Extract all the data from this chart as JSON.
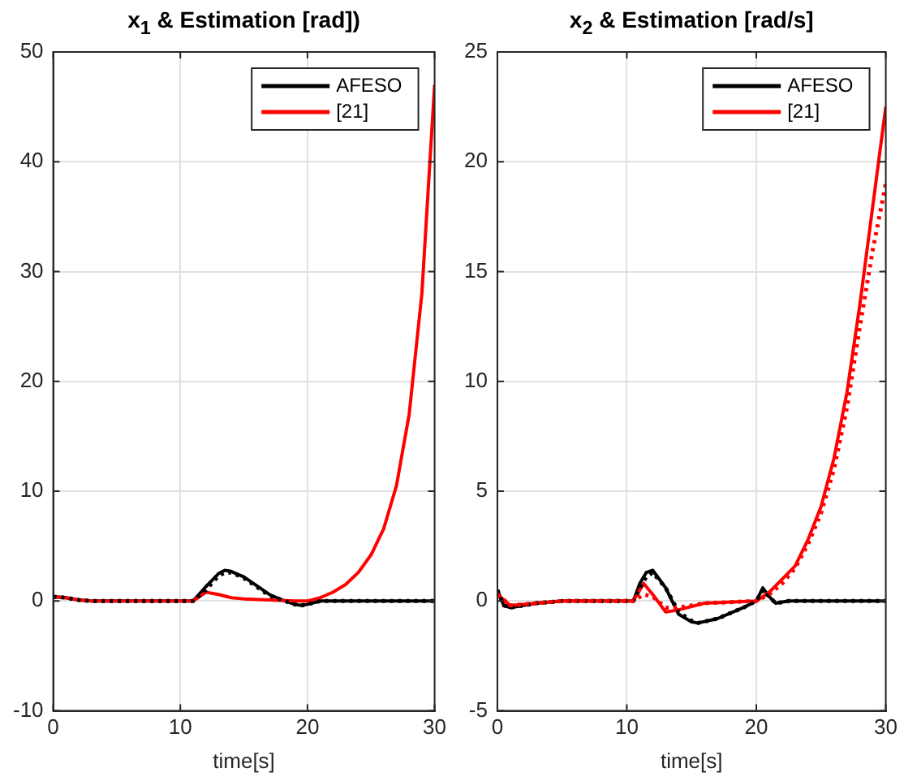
{
  "chart_data": [
    {
      "type": "line",
      "title": "x$_{1}$ & Estimation [rad])",
      "xlabel": "time[s]",
      "xlim": [
        0,
        30
      ],
      "xticks": [
        0,
        10,
        20,
        30
      ],
      "ylim": [
        -10,
        50
      ],
      "yticks": [
        -10,
        0,
        10,
        20,
        30,
        40,
        50
      ],
      "grid": true,
      "legend": "top right",
      "series": [
        {
          "name": "AFESO",
          "color": "#000000",
          "line_style": "solid",
          "x": [
            0,
            1,
            2,
            3,
            6,
            10,
            11,
            12,
            13,
            13.5,
            14,
            15,
            16,
            17,
            18,
            19,
            19.5,
            20,
            21,
            22,
            25,
            30
          ],
          "values": [
            0.4,
            0.3,
            0.1,
            0,
            0,
            0,
            0,
            1.3,
            2.5,
            2.8,
            2.7,
            2.2,
            1.4,
            0.6,
            0.1,
            -0.3,
            -0.4,
            -0.3,
            0,
            0,
            0,
            0
          ]
        },
        {
          "name": "[21]",
          "color": "#ff0000",
          "line_style": "solid",
          "x": [
            0,
            1,
            2,
            3,
            6,
            10,
            11,
            12,
            13,
            14,
            15,
            17,
            19,
            20,
            21,
            22,
            23,
            24,
            25,
            26,
            27,
            28,
            29,
            30
          ],
          "values": [
            0.4,
            0.3,
            0.1,
            0,
            0,
            0,
            0,
            0.8,
            0.6,
            0.3,
            0.2,
            0.1,
            0,
            0,
            0.3,
            0.8,
            1.5,
            2.6,
            4.2,
            6.6,
            10.5,
            17,
            28,
            47
          ]
        },
        {
          "color": "#000000",
          "line_style": "dotted",
          "x": [
            0,
            1,
            2,
            3,
            6,
            10,
            11,
            12,
            13,
            13.5,
            14,
            15,
            16,
            17,
            18,
            19,
            19.5,
            20,
            21,
            22,
            25,
            30
          ],
          "values": [
            0.4,
            0.3,
            0.1,
            0,
            0,
            0,
            0,
            1.0,
            2.3,
            2.6,
            2.6,
            2.1,
            1.3,
            0.5,
            0.1,
            -0.3,
            -0.4,
            -0.3,
            0,
            0,
            0,
            0
          ]
        }
      ]
    },
    {
      "type": "line",
      "title": "x$_{2}$ & Estimation [rad/s]",
      "xlabel": "time[s]",
      "xlim": [
        0,
        30
      ],
      "xticks": [
        0,
        10,
        20,
        30
      ],
      "ylim": [
        -5,
        25
      ],
      "yticks": [
        -5,
        0,
        5,
        10,
        15,
        20,
        25
      ],
      "grid": true,
      "legend": "top right",
      "series": [
        {
          "name": "AFESO",
          "color": "#000000",
          "line_style": "solid",
          "x": [
            0,
            0.5,
            1,
            3,
            5,
            10.5,
            11,
            11.5,
            12,
            13,
            14,
            15,
            15.5,
            17,
            19,
            20,
            20.5,
            21,
            21.5,
            22.5,
            25,
            30
          ],
          "values": [
            0.5,
            -0.2,
            -0.3,
            -0.1,
            0,
            0,
            0.8,
            1.3,
            1.4,
            0.6,
            -0.6,
            -0.95,
            -1.0,
            -0.8,
            -0.3,
            0,
            0.6,
            0.2,
            -0.1,
            0,
            0,
            0
          ]
        },
        {
          "name": "[21]",
          "color": "#ff0000",
          "line_style": "solid",
          "x": [
            0,
            1,
            3,
            5,
            10.5,
            11.3,
            12,
            13,
            14,
            16,
            20,
            21,
            22,
            23,
            24,
            25,
            26,
            27,
            28,
            29,
            30
          ],
          "values": [
            0.3,
            -0.2,
            -0.1,
            0,
            0,
            0.8,
            0.3,
            -0.5,
            -0.4,
            -0.1,
            0,
            0.4,
            1.0,
            1.6,
            2.8,
            4.3,
            6.5,
            9.5,
            13.5,
            18,
            22.5
          ]
        },
        {
          "color": "#000000",
          "line_style": "dotted",
          "x": [
            0,
            0.5,
            1,
            3,
            5,
            10.5,
            11,
            11.5,
            12,
            13,
            14,
            15,
            15.5,
            17,
            19,
            20,
            20.5,
            21,
            21.5,
            22.5,
            25,
            30
          ],
          "values": [
            0.5,
            -0.2,
            -0.3,
            -0.1,
            0,
            0,
            0.6,
            1.1,
            1.3,
            0.6,
            -0.5,
            -0.9,
            -1.0,
            -0.8,
            -0.3,
            0,
            0.5,
            0.2,
            -0.1,
            0,
            0,
            0
          ]
        },
        {
          "color": "#ff0000",
          "line_style": "dotted",
          "x": [
            0,
            1,
            3,
            5,
            10.5,
            11.3,
            12,
            13,
            14,
            16,
            20,
            21,
            22,
            23,
            24,
            25,
            26,
            27,
            28,
            29,
            30
          ],
          "values": [
            0.3,
            -0.2,
            -0.1,
            0,
            0,
            0.3,
            0.2,
            -0.3,
            -0.3,
            -0.1,
            0,
            0.3,
            0.8,
            1.5,
            2.6,
            4.0,
            6.0,
            8.8,
            12.5,
            16,
            19
          ]
        }
      ]
    }
  ]
}
